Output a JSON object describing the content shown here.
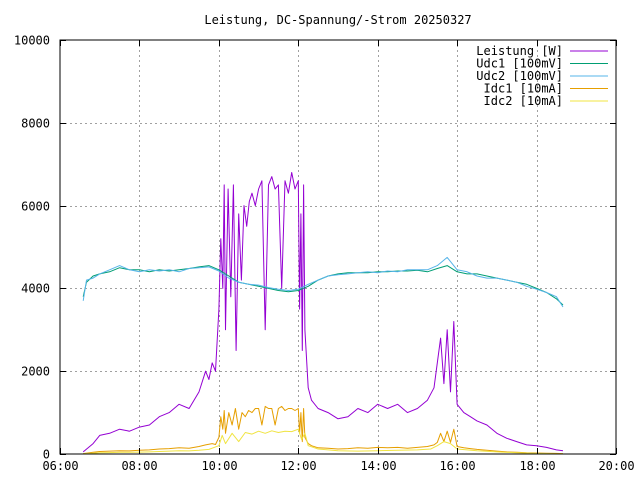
{
  "chart_data": {
    "type": "line",
    "title": "Leistung, DC-Spannung/-Strom 20250327",
    "xlabel": "",
    "ylabel": "",
    "xlim": [
      "06:00",
      "20:00"
    ],
    "ylim": [
      0,
      10000
    ],
    "x_ticks": [
      "06:00",
      "08:00",
      "10:00",
      "12:00",
      "14:00",
      "16:00",
      "18:00",
      "20:00"
    ],
    "y_ticks": [
      "0",
      "2000",
      "4000",
      "6000",
      "8000",
      "10000"
    ],
    "grid": true,
    "legend_position": "top-right",
    "series": [
      {
        "name": "Leistung [W]",
        "color": "#9400d3",
        "x": [
          "06:35",
          "06:50",
          "07:00",
          "07:15",
          "07:30",
          "07:45",
          "08:00",
          "08:15",
          "08:30",
          "08:45",
          "09:00",
          "09:15",
          "09:30",
          "09:40",
          "09:45",
          "09:50",
          "09:55",
          "10:00",
          "10:03",
          "10:06",
          "10:08",
          "10:10",
          "10:14",
          "10:18",
          "10:22",
          "10:26",
          "10:30",
          "10:34",
          "10:38",
          "10:42",
          "10:46",
          "10:50",
          "10:55",
          "11:00",
          "11:05",
          "11:10",
          "11:15",
          "11:20",
          "11:25",
          "11:30",
          "11:35",
          "11:40",
          "11:45",
          "11:50",
          "11:55",
          "12:00",
          "12:02",
          "12:04",
          "12:06",
          "12:08",
          "12:10",
          "12:15",
          "12:20",
          "12:30",
          "12:45",
          "13:00",
          "13:15",
          "13:30",
          "13:45",
          "14:00",
          "14:15",
          "14:30",
          "14:45",
          "15:00",
          "15:15",
          "15:25",
          "15:30",
          "15:35",
          "15:40",
          "15:45",
          "15:50",
          "15:55",
          "16:00",
          "16:10",
          "16:20",
          "16:30",
          "16:45",
          "17:00",
          "17:15",
          "17:30",
          "17:45",
          "18:00",
          "18:15",
          "18:30",
          "18:40"
        ],
        "y": [
          50,
          250,
          450,
          500,
          600,
          550,
          650,
          700,
          900,
          1000,
          1200,
          1100,
          1500,
          2000,
          1800,
          2200,
          2000,
          3500,
          5200,
          4000,
          6500,
          3000,
          6400,
          3800,
          6500,
          2500,
          5800,
          4200,
          6000,
          5500,
          6100,
          6300,
          6000,
          6400,
          6600,
          3000,
          6500,
          6700,
          6400,
          6500,
          4000,
          6600,
          6300,
          6800,
          6400,
          6600,
          3500,
          5800,
          2500,
          6500,
          3000,
          1600,
          1300,
          1100,
          1000,
          850,
          900,
          1100,
          1000,
          1200,
          1100,
          1200,
          1000,
          1100,
          1300,
          1600,
          2200,
          2800,
          1700,
          3000,
          1500,
          3200,
          1200,
          1000,
          900,
          800,
          700,
          500,
          380,
          300,
          220,
          200,
          160,
          100,
          80
        ]
      },
      {
        "name": "Udc1 [100mV]",
        "color": "#009e73",
        "x": [
          "06:35",
          "06:40",
          "06:50",
          "07:00",
          "07:15",
          "07:30",
          "07:45",
          "08:00",
          "08:15",
          "08:30",
          "08:45",
          "09:00",
          "09:15",
          "09:30",
          "09:45",
          "10:00",
          "10:15",
          "10:30",
          "10:45",
          "11:00",
          "11:15",
          "11:30",
          "11:45",
          "12:00",
          "12:15",
          "12:30",
          "12:45",
          "13:00",
          "13:15",
          "13:30",
          "13:45",
          "14:00",
          "14:15",
          "14:30",
          "14:45",
          "15:00",
          "15:15",
          "15:30",
          "15:45",
          "16:00",
          "16:15",
          "16:30",
          "16:45",
          "17:00",
          "17:15",
          "17:30",
          "17:45",
          "18:00",
          "18:15",
          "18:30",
          "18:40"
        ],
        "y": [
          3800,
          4150,
          4300,
          4350,
          4400,
          4500,
          4450,
          4450,
          4400,
          4450,
          4420,
          4450,
          4480,
          4520,
          4550,
          4450,
          4300,
          4150,
          4100,
          4050,
          4000,
          3950,
          3920,
          3950,
          4050,
          4200,
          4300,
          4350,
          4380,
          4380,
          4380,
          4400,
          4400,
          4420,
          4420,
          4440,
          4400,
          4480,
          4550,
          4400,
          4350,
          4350,
          4300,
          4250,
          4200,
          4150,
          4100,
          4000,
          3900,
          3750,
          3600
        ]
      },
      {
        "name": "Udc2 [100mV]",
        "color": "#56b4e9",
        "x": [
          "06:35",
          "06:40",
          "06:50",
          "07:00",
          "07:15",
          "07:30",
          "07:45",
          "08:00",
          "08:15",
          "08:30",
          "08:45",
          "09:00",
          "09:15",
          "09:30",
          "09:45",
          "10:00",
          "10:15",
          "10:30",
          "10:45",
          "11:00",
          "11:15",
          "11:30",
          "11:45",
          "12:00",
          "12:15",
          "12:30",
          "12:45",
          "13:00",
          "13:15",
          "13:30",
          "13:45",
          "14:00",
          "14:15",
          "14:30",
          "14:45",
          "15:00",
          "15:15",
          "15:30",
          "15:45",
          "16:00",
          "16:15",
          "16:30",
          "16:45",
          "17:00",
          "17:15",
          "17:30",
          "17:45",
          "18:00",
          "18:15",
          "18:30",
          "18:40"
        ],
        "y": [
          3700,
          4200,
          4250,
          4350,
          4450,
          4550,
          4450,
          4400,
          4450,
          4420,
          4450,
          4400,
          4480,
          4500,
          4520,
          4420,
          4250,
          4150,
          4100,
          4080,
          4020,
          3980,
          3950,
          3980,
          4100,
          4200,
          4300,
          4330,
          4350,
          4380,
          4400,
          4380,
          4420,
          4400,
          4450,
          4450,
          4450,
          4550,
          4750,
          4450,
          4400,
          4300,
          4250,
          4250,
          4200,
          4150,
          4050,
          3980,
          3900,
          3800,
          3550
        ]
      },
      {
        "name": "Idc1 [10mA]",
        "color": "#e69f00",
        "x": [
          "06:35",
          "06:50",
          "07:00",
          "07:15",
          "07:30",
          "07:45",
          "08:00",
          "08:15",
          "08:30",
          "08:45",
          "09:00",
          "09:15",
          "09:30",
          "09:40",
          "09:50",
          "09:55",
          "10:00",
          "10:03",
          "10:06",
          "10:08",
          "10:10",
          "10:15",
          "10:20",
          "10:25",
          "10:30",
          "10:35",
          "10:40",
          "10:45",
          "10:50",
          "10:55",
          "11:00",
          "11:05",
          "11:10",
          "11:15",
          "11:20",
          "11:25",
          "11:30",
          "11:35",
          "11:40",
          "11:45",
          "11:50",
          "11:55",
          "12:00",
          "12:02",
          "12:04",
          "12:06",
          "12:08",
          "12:10",
          "12:15",
          "12:20",
          "12:30",
          "12:45",
          "13:00",
          "13:15",
          "13:30",
          "13:45",
          "14:00",
          "14:15",
          "14:30",
          "14:45",
          "15:00",
          "15:15",
          "15:25",
          "15:30",
          "15:35",
          "15:40",
          "15:45",
          "15:50",
          "15:55",
          "16:00",
          "16:10",
          "16:20",
          "16:30",
          "16:45",
          "17:00",
          "17:15",
          "17:30",
          "17:45",
          "18:00",
          "18:15",
          "18:30",
          "18:40"
        ],
        "y": [
          10,
          40,
          60,
          70,
          80,
          75,
          90,
          100,
          120,
          130,
          150,
          140,
          180,
          220,
          250,
          230,
          400,
          900,
          600,
          1050,
          500,
          1000,
          700,
          1100,
          600,
          1000,
          900,
          1050,
          1000,
          1100,
          1100,
          700,
          1150,
          1100,
          1100,
          700,
          1100,
          1150,
          1050,
          1100,
          1100,
          1050,
          1100,
          500,
          1000,
          300,
          1100,
          400,
          250,
          200,
          150,
          140,
          120,
          130,
          150,
          140,
          160,
          150,
          160,
          140,
          160,
          180,
          220,
          280,
          500,
          300,
          550,
          280,
          600,
          180,
          150,
          130,
          110,
          90,
          70,
          50,
          40,
          30,
          25,
          20,
          15,
          10
        ]
      },
      {
        "name": "Idc2 [10mA]",
        "color": "#f0e442",
        "x": [
          "06:35",
          "06:50",
          "07:00",
          "07:15",
          "07:30",
          "07:45",
          "08:00",
          "08:15",
          "08:30",
          "08:45",
          "09:00",
          "09:15",
          "09:30",
          "09:45",
          "10:00",
          "10:05",
          "10:10",
          "10:20",
          "10:30",
          "10:40",
          "10:50",
          "11:00",
          "11:10",
          "11:20",
          "11:30",
          "11:40",
          "11:50",
          "12:00",
          "12:05",
          "12:10",
          "12:15",
          "12:30",
          "13:00",
          "13:30",
          "14:00",
          "14:30",
          "15:00",
          "15:20",
          "15:30",
          "15:40",
          "15:50",
          "16:00",
          "16:30",
          "17:00",
          "17:30",
          "18:00",
          "18:30",
          "18:40"
        ],
        "y": [
          5,
          20,
          30,
          35,
          40,
          40,
          45,
          50,
          60,
          70,
          80,
          75,
          90,
          110,
          200,
          450,
          250,
          500,
          300,
          520,
          480,
          550,
          500,
          560,
          520,
          550,
          540,
          600,
          350,
          500,
          200,
          120,
          80,
          70,
          80,
          90,
          100,
          120,
          200,
          300,
          250,
          120,
          80,
          50,
          30,
          15,
          8,
          5
        ]
      }
    ]
  }
}
